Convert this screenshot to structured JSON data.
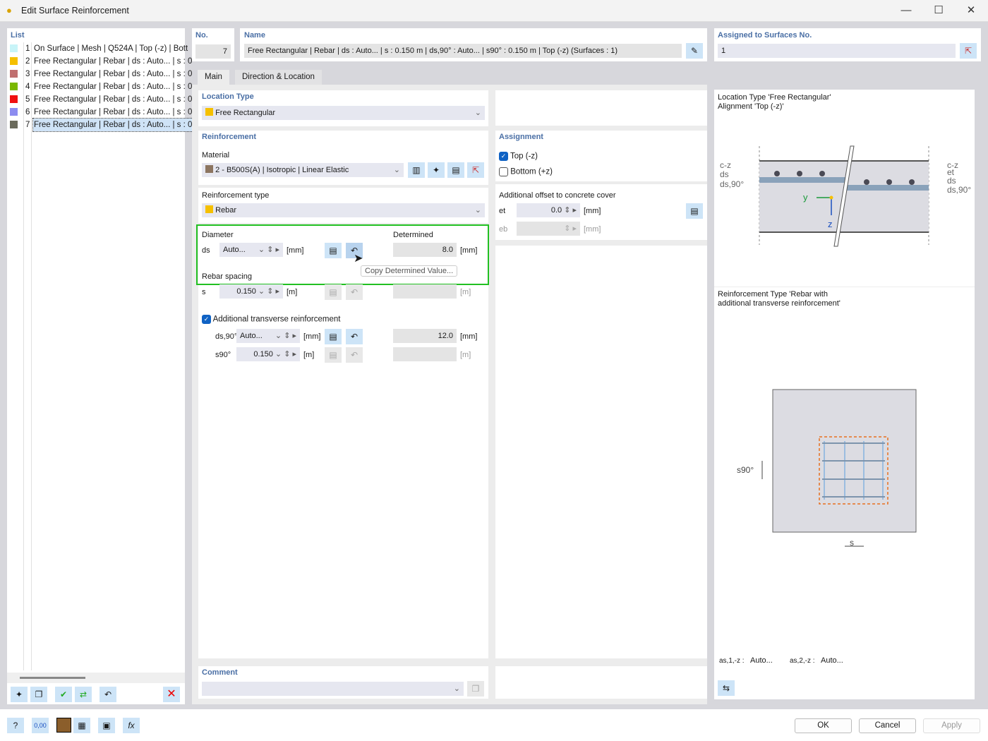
{
  "window": {
    "title": "Edit Surface Reinforcement",
    "minimize": "—",
    "maximize": "☐",
    "close": "✕"
  },
  "list": {
    "header": "List",
    "items": [
      {
        "no": "1",
        "label": "On Surface | Mesh | Q524A | Top (-z) | Bott",
        "color": "#c8f4f8"
      },
      {
        "no": "2",
        "label": "Free Rectangular | Rebar | ds : Auto... | s : 0",
        "color": "#f5c000"
      },
      {
        "no": "3",
        "label": "Free Rectangular | Rebar | ds : Auto... | s : 0",
        "color": "#c07070"
      },
      {
        "no": "4",
        "label": "Free Rectangular | Rebar | ds : Auto... | s : 0",
        "color": "#7ab800"
      },
      {
        "no": "5",
        "label": "Free Rectangular | Rebar | ds : Auto... | s : 0",
        "color": "#f01010"
      },
      {
        "no": "6",
        "label": "Free Rectangular | Rebar | ds : Auto... | s : 0",
        "color": "#8c8cf0"
      },
      {
        "no": "7",
        "label": "Free Rectangular | Rebar | ds : Auto... | s : 0",
        "color": "#6b6b5c",
        "selected": true
      }
    ]
  },
  "header": {
    "no_label": "No.",
    "no_value": "7",
    "name_label": "Name",
    "name_value": "Free Rectangular | Rebar | ds : Auto... | s : 0.150 m | ds,90° : Auto... | s90° : 0.150 m | Top (-z) (Surfaces : 1)",
    "assigned_label": "Assigned to Surfaces No.",
    "assigned_value": "1"
  },
  "tabs": [
    {
      "label": "Main",
      "active": true
    },
    {
      "label": "Direction & Location"
    }
  ],
  "location_type": {
    "header": "Location Type",
    "value": "Free Rectangular",
    "color": "#f5c000"
  },
  "reinforcement": {
    "header": "Reinforcement",
    "material_label": "Material",
    "material_value": "2 - B500S(A) | Isotropic | Linear Elastic",
    "material_color": "#8c7560",
    "type_label": "Reinforcement type",
    "type_value": "Rebar",
    "type_color": "#f5c000"
  },
  "diameter": {
    "header": "Diameter",
    "determined_header": "Determined",
    "ds_label": "ds",
    "ds_value": "Auto...",
    "ds_unit": "[mm]",
    "ds_determined": "8.0",
    "ds_det_unit": "[mm]",
    "tooltip": "Copy Determined Value...",
    "highlight_color": "#22c022"
  },
  "spacing": {
    "header": "Rebar spacing",
    "s_label": "s",
    "s_value": "0.150",
    "s_unit": "[m]",
    "s_det_unit": "[m]"
  },
  "transverse": {
    "label": "Additional transverse reinforcement",
    "checked": true,
    "ds90_label": "ds,90°",
    "ds90_value": "Auto...",
    "ds90_unit": "[mm]",
    "ds90_determined": "12.0",
    "ds90_det_unit": "[mm]",
    "s90_label": "s90°",
    "s90_value": "0.150",
    "s90_unit": "[m]",
    "s90_det_unit": "[m]"
  },
  "assignment": {
    "header": "Assignment",
    "top_label": "Top (-z)",
    "top_checked": true,
    "bottom_label": "Bottom (+z)",
    "bottom_checked": false
  },
  "offset": {
    "header": "Additional offset to concrete cover",
    "et_label": "et",
    "et_value": "0.0",
    "et_unit": "[mm]",
    "eb_label": "eb",
    "eb_value": "",
    "eb_unit": "[mm]"
  },
  "comment": {
    "header": "Comment",
    "value": ""
  },
  "preview": {
    "title1": "Location Type 'Free Rectangular'",
    "title2": "Alignment 'Top (-z)'",
    "left_labels": [
      "c-z",
      "ds",
      "ds,90°"
    ],
    "right_labels": [
      "c-z",
      "et",
      "ds",
      "ds,90°"
    ],
    "axis_y": "y",
    "axis_z": "z",
    "type_title1": "Reinforcement Type 'Rebar with",
    "type_title2": "additional transverse reinforcement'",
    "s90_dim": "s90°",
    "s_dim": "s",
    "as1_label": "as,1,-z :",
    "as1_value": "Auto...",
    "as2_label": "as,2,-z :",
    "as2_value": "Auto..."
  },
  "footer": {
    "ok": "OK",
    "cancel": "Cancel",
    "apply": "Apply",
    "units_icon_text": "0,00"
  }
}
